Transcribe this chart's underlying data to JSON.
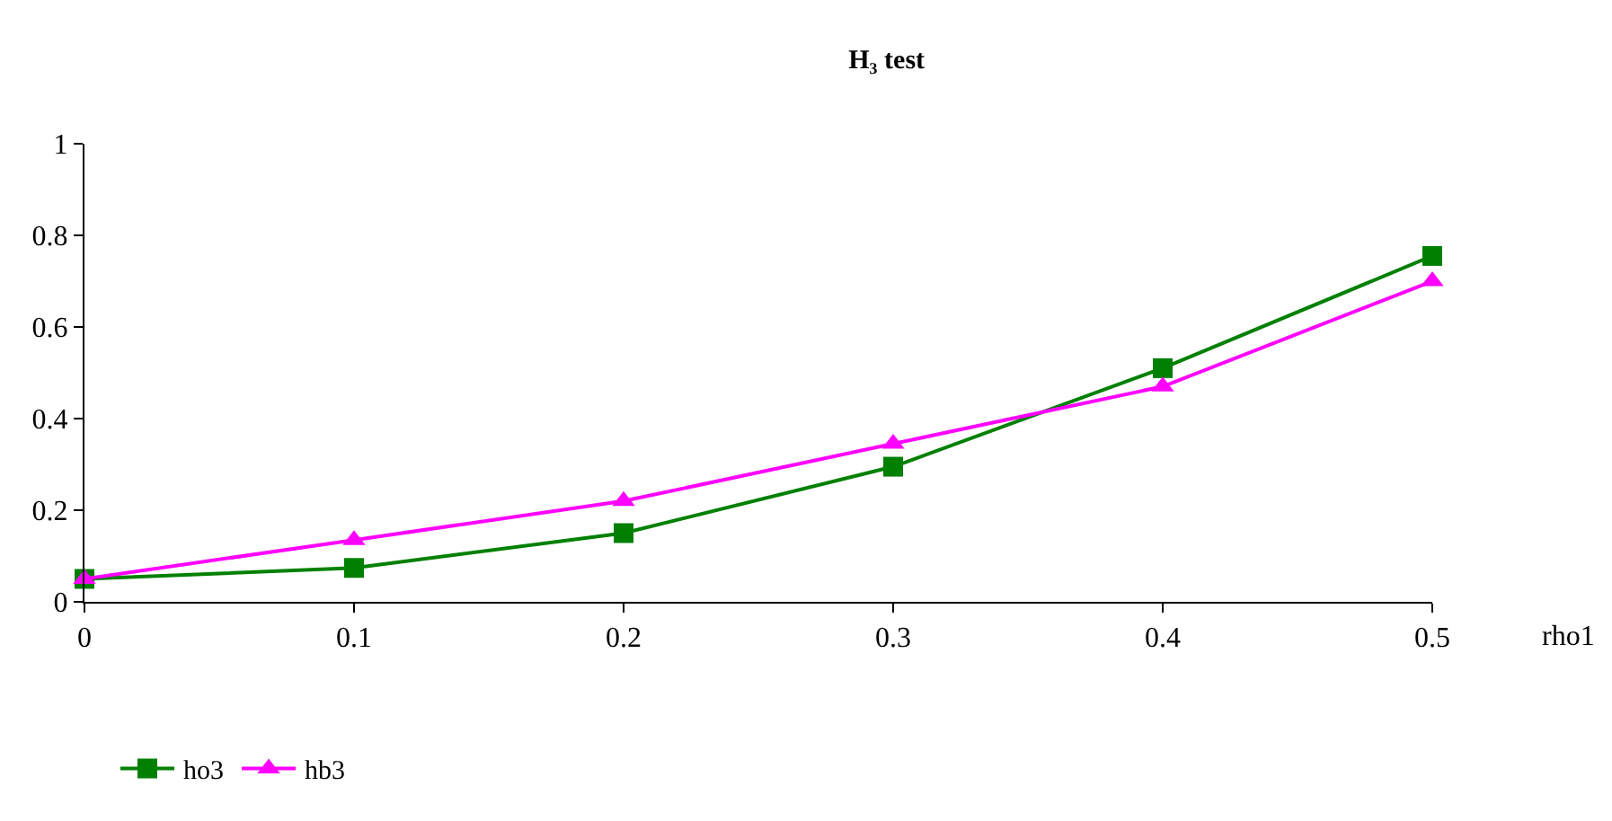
{
  "chart_data": {
    "type": "line",
    "title": "H₃ test",
    "xlabel": "rho1",
    "x": [
      0,
      0.1,
      0.2,
      0.3,
      0.4,
      0.5
    ],
    "series": [
      {
        "name": "ho3",
        "color": "#008000",
        "marker": "square",
        "values": [
          0.05,
          0.074,
          0.15,
          0.295,
          0.51,
          0.755
        ]
      },
      {
        "name": "hb3",
        "color": "#ff00ff",
        "marker": "triangle",
        "values": [
          0.05,
          0.135,
          0.22,
          0.345,
          0.47,
          0.7
        ]
      }
    ],
    "xlim": [
      0,
      0.5
    ],
    "xticks": [
      0,
      0.1,
      0.2,
      0.3,
      0.4,
      0.5
    ],
    "ylim": [
      0,
      1
    ],
    "yticks": [
      0,
      0.2,
      0.4,
      0.6,
      0.8,
      1
    ],
    "legend": "bottom left",
    "line_style": "solid"
  }
}
